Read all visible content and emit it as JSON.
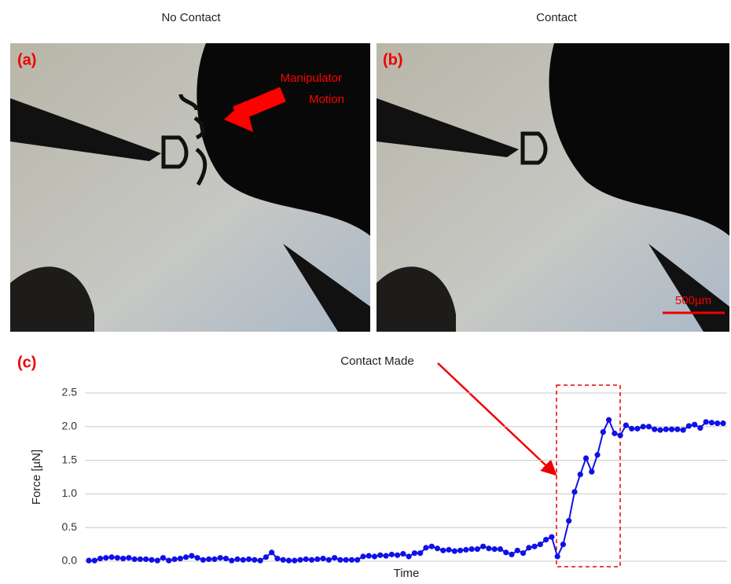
{
  "panels": [
    {
      "label": "(a)",
      "title": "No Contact",
      "annotation": [
        "Manipulator",
        "Motion"
      ]
    },
    {
      "label": "(b)",
      "title": "Contact",
      "scale_bar": "500µm"
    }
  ],
  "chart_data": {
    "type": "line",
    "label": "(c)",
    "annotation": "Contact Made",
    "x_label": "Time",
    "y_label": "Force [µN]",
    "ylim": [
      0,
      2.5
    ],
    "yticks": [
      {
        "value": 0,
        "label": "0.0"
      },
      0.5,
      {
        "value": 1,
        "label": "1.0"
      },
      1.5,
      {
        "value": 2,
        "label": "2.0"
      },
      2.5
    ],
    "grid": true,
    "series": [
      {
        "color": "#1010e8",
        "values": [
          0.01,
          0.01,
          0.04,
          0.05,
          0.06,
          0.05,
          0.04,
          0.05,
          0.03,
          0.03,
          0.03,
          0.02,
          0.01,
          0.05,
          0.01,
          0.03,
          0.04,
          0.06,
          0.08,
          0.05,
          0.02,
          0.03,
          0.03,
          0.05,
          0.04,
          0.01,
          0.03,
          0.02,
          0.03,
          0.02,
          0.01,
          0.06,
          0.13,
          0.04,
          0.02,
          0.01,
          0.01,
          0.02,
          0.03,
          0.02,
          0.03,
          0.04,
          0.02,
          0.05,
          0.02,
          0.02,
          0.02,
          0.02,
          0.07,
          0.08,
          0.07,
          0.09,
          0.08,
          0.1,
          0.09,
          0.11,
          0.07,
          0.12,
          0.12,
          0.2,
          0.22,
          0.19,
          0.16,
          0.17,
          0.15,
          0.16,
          0.17,
          0.18,
          0.18,
          0.22,
          0.19,
          0.18,
          0.18,
          0.13,
          0.1,
          0.16,
          0.12,
          0.2,
          0.22,
          0.25,
          0.32,
          0.36,
          0.07,
          0.25,
          0.6,
          1.03,
          1.29,
          1.53,
          1.33,
          1.58,
          1.92,
          2.1,
          1.9,
          1.87,
          2.02,
          1.97,
          1.97,
          2.0,
          2.0,
          1.96,
          1.95,
          1.96,
          1.96,
          1.96,
          1.95,
          2.01,
          2.03,
          1.98,
          2.07,
          2.06,
          2.05,
          2.05
        ]
      }
    ]
  }
}
